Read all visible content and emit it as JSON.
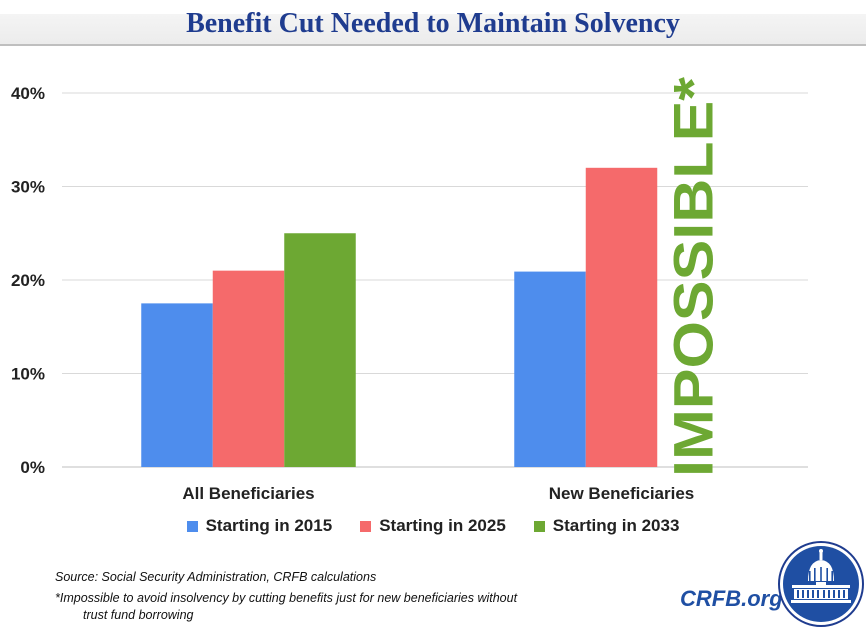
{
  "header": {
    "title": "Benefit Cut Needed to Maintain Solvency"
  },
  "chart_data": {
    "type": "bar",
    "title": "Benefit Cut Needed to Maintain Solvency",
    "categories": [
      "All Beneficiaries",
      "New Beneficiaries"
    ],
    "series": [
      {
        "name": "Starting in 2015",
        "color": "#4e8ded",
        "values": [
          17.5,
          20.9
        ]
      },
      {
        "name": "Starting in 2025",
        "color": "#f56a6b",
        "values": [
          21,
          32
        ]
      },
      {
        "name": "Starting in 2033",
        "color": "#6da833",
        "values": [
          25,
          null
        ]
      }
    ],
    "ylim": [
      0,
      40
    ],
    "yticks": [
      "0%",
      "10%",
      "20%",
      "30%",
      "40%"
    ],
    "grid": true,
    "annotation": {
      "text": "IMPOSSIBLE*",
      "color": "#6da833",
      "series": "Starting in 2033",
      "category": "New Beneficiaries"
    }
  },
  "legend": {
    "items": [
      {
        "label": "Starting in 2015",
        "color": "#4e8ded"
      },
      {
        "label": "Starting in 2025",
        "color": "#f56a6b"
      },
      {
        "label": "Starting in 2033",
        "color": "#6da833"
      }
    ]
  },
  "footer": {
    "source": "Source: Social Security Administration, CRFB calculations",
    "footnote_line1": "*Impossible to avoid insolvency by cutting benefits just for new beneficiaries without",
    "footnote_line2": "trust fund borrowing",
    "site": "CRFB.org"
  }
}
